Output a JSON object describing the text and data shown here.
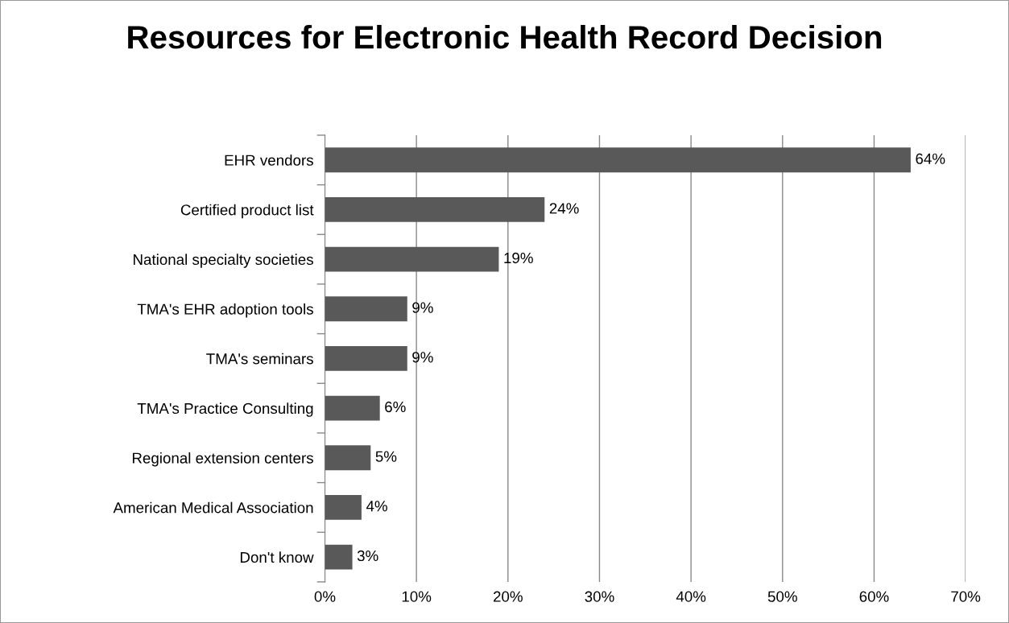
{
  "chart_data": {
    "type": "bar",
    "orientation": "horizontal",
    "title": "Resources for Electronic Health Record Decision",
    "categories": [
      "EHR vendors",
      "Certified product list",
      "National specialty societies",
      "TMA's EHR adoption tools",
      "TMA's seminars",
      "TMA's Practice Consulting",
      "Regional extension centers",
      "American Medical Association",
      "Don't know"
    ],
    "values": [
      64,
      24,
      19,
      9,
      9,
      6,
      5,
      4,
      3
    ],
    "value_labels": [
      "64%",
      "24%",
      "19%",
      "9%",
      "9%",
      "6%",
      "5%",
      "4%",
      "3%"
    ],
    "color": "#595959",
    "xlim": [
      0,
      70
    ],
    "xticks": [
      {
        "value": 0,
        "label": "0%"
      },
      {
        "value": 10,
        "label": "10%"
      },
      {
        "value": 20,
        "label": "20%"
      },
      {
        "value": 30,
        "label": "30%"
      },
      {
        "value": 40,
        "label": "40%"
      },
      {
        "value": 50,
        "label": "50%"
      },
      {
        "value": 60,
        "label": "60%"
      },
      {
        "value": 70,
        "label": "70%"
      }
    ],
    "grid": "x",
    "legend": false
  }
}
